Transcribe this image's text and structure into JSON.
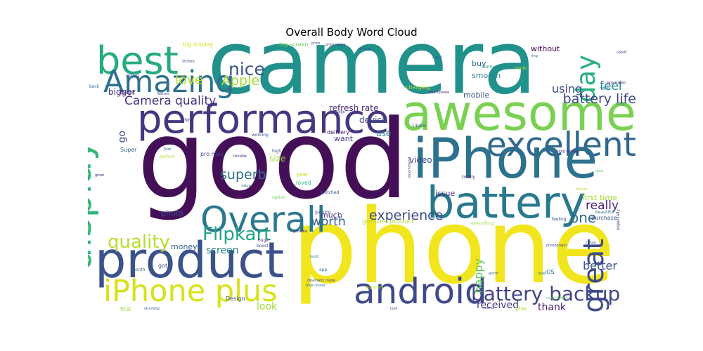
{
  "chart_data": {
    "type": "wordcloud",
    "title": "Overall Body Word Cloud",
    "colormap": "viridis",
    "background": "#ffffff",
    "words": [
      {
        "text": "good",
        "weight": 100,
        "color": "#440f57",
        "orientation": "horizontal"
      },
      {
        "text": "phone",
        "weight": 95,
        "color": "#f1e51d",
        "orientation": "horizontal"
      },
      {
        "text": "camera",
        "weight": 80,
        "color": "#21918c",
        "orientation": "horizontal"
      },
      {
        "text": "iPhone",
        "weight": 50,
        "color": "#2c718e",
        "orientation": "horizontal"
      },
      {
        "text": "awesome",
        "weight": 45,
        "color": "#7ad151",
        "orientation": "horizontal"
      },
      {
        "text": "product",
        "weight": 45,
        "color": "#3b528b",
        "orientation": "horizontal"
      },
      {
        "text": "battery",
        "weight": 40,
        "color": "#29798e",
        "orientation": "horizontal"
      },
      {
        "text": "performance",
        "weight": 36,
        "color": "#453781",
        "orientation": "horizontal"
      },
      {
        "text": "best",
        "weight": 35,
        "color": "#25ab82",
        "orientation": "horizontal"
      },
      {
        "text": "display",
        "weight": 34,
        "color": "#35b779",
        "orientation": "vertical"
      },
      {
        "text": "android",
        "weight": 32,
        "color": "#3e4a89",
        "orientation": "horizontal"
      },
      {
        "text": "Overall",
        "weight": 32,
        "color": "#2a788e",
        "orientation": "horizontal"
      },
      {
        "text": "excellent",
        "weight": 30,
        "color": "#31688e",
        "orientation": "horizontal"
      },
      {
        "text": "iPhone plus",
        "weight": 28,
        "color": "#d8e219",
        "orientation": "horizontal"
      },
      {
        "text": "Amazing",
        "weight": 28,
        "color": "#2d708e",
        "orientation": "horizontal"
      },
      {
        "text": "great",
        "weight": 26,
        "color": "#3e4c8a",
        "orientation": "vertical"
      },
      {
        "text": "day",
        "weight": 24,
        "color": "#29af7f",
        "orientation": "vertical"
      },
      {
        "text": "battery backup",
        "weight": 18,
        "color": "#414487",
        "orientation": "horizontal"
      },
      {
        "text": "quality",
        "weight": 17,
        "color": "#b5de2b",
        "orientation": "horizontal"
      },
      {
        "text": "Flipkart",
        "weight": 17,
        "color": "#20a486",
        "orientation": "horizontal"
      },
      {
        "text": "nice",
        "weight": 16,
        "color": "#3b528b",
        "orientation": "horizontal"
      },
      {
        "text": "Apple",
        "weight": 12,
        "color": "#a0da39",
        "orientation": "horizontal"
      },
      {
        "text": "love",
        "weight": 12,
        "color": "#b8de29",
        "orientation": "horizontal"
      },
      {
        "text": "battery life",
        "weight": 12,
        "color": "#3f4788",
        "orientation": "horizontal"
      },
      {
        "text": "Camera quality",
        "weight": 11,
        "color": "#453581",
        "orientation": "horizontal"
      },
      {
        "text": "experience",
        "weight": 12,
        "color": "#3e4989",
        "orientation": "horizontal"
      },
      {
        "text": "worth",
        "weight": 11,
        "color": "#355f8d",
        "orientation": "horizontal"
      },
      {
        "text": "superb",
        "weight": 12,
        "color": "#2c728e",
        "orientation": "horizontal"
      },
      {
        "text": "really",
        "weight": 11,
        "color": "#482475",
        "orientation": "horizontal"
      },
      {
        "text": "one",
        "weight": 13,
        "color": "#2f6c8e",
        "orientation": "horizontal"
      },
      {
        "text": "feel",
        "weight": 11,
        "color": "#21908d",
        "orientation": "horizontal"
      },
      {
        "text": "using",
        "weight": 10,
        "color": "#3c4f8a",
        "orientation": "horizontal"
      },
      {
        "text": "better",
        "weight": 10,
        "color": "#3b528b",
        "orientation": "horizontal"
      },
      {
        "text": "happy",
        "weight": 10,
        "color": "#5ec962",
        "orientation": "vertical"
      },
      {
        "text": "received",
        "weight": 9,
        "color": "#46327e",
        "orientation": "horizontal"
      },
      {
        "text": "thank",
        "weight": 9,
        "color": "#481f70",
        "orientation": "horizontal"
      },
      {
        "text": "look",
        "weight": 9,
        "color": "#9fda3a",
        "orientation": "horizontal"
      },
      {
        "text": "screen",
        "weight": 9,
        "color": "#26828e",
        "orientation": "horizontal"
      },
      {
        "text": "go",
        "weight": 9,
        "color": "#3e4a89",
        "orientation": "vertical"
      },
      {
        "text": "bigger",
        "weight": 8,
        "color": "#472d7b",
        "orientation": "horizontal"
      },
      {
        "text": "refresh rate",
        "weight": 8,
        "color": "#482878",
        "orientation": "horizontal"
      },
      {
        "text": "device",
        "weight": 8,
        "color": "#3e4c8a",
        "orientation": "horizontal"
      },
      {
        "text": "use",
        "weight": 8,
        "color": "#2a768e",
        "orientation": "horizontal"
      },
      {
        "text": "want",
        "weight": 7,
        "color": "#433e85",
        "orientation": "horizontal"
      },
      {
        "text": "video",
        "weight": 8,
        "color": "#3b528b",
        "orientation": "horizontal"
      },
      {
        "text": "size",
        "weight": 8,
        "color": "#a2da37",
        "orientation": "horizontal"
      },
      {
        "text": "mobile",
        "weight": 7,
        "color": "#3a548c",
        "orientation": "horizontal"
      },
      {
        "text": "buy",
        "weight": 7,
        "color": "#30698e",
        "orientation": "horizontal"
      },
      {
        "text": "smooth",
        "weight": 7,
        "color": "#26828e",
        "orientation": "horizontal"
      },
      {
        "text": "without",
        "weight": 7,
        "color": "#440154",
        "orientation": "horizontal"
      },
      {
        "text": "first time",
        "weight": 7,
        "color": "#a8db34",
        "orientation": "horizontal"
      },
      {
        "text": "photo",
        "weight": 7,
        "color": "#3b528b",
        "orientation": "horizontal"
      },
      {
        "text": "money",
        "weight": 7,
        "color": "#355f8d",
        "orientation": "horizontal"
      },
      {
        "text": "issue",
        "weight": 7,
        "color": "#472c7a",
        "orientation": "horizontal"
      },
      {
        "text": "much",
        "weight": 7,
        "color": "#46337f",
        "orientation": "horizontal"
      },
      {
        "text": "genuine product",
        "weight": 6,
        "color": "#b2dd2d",
        "orientation": "horizontal"
      },
      {
        "text": "purchase",
        "weight": 5,
        "color": "#3b528b",
        "orientation": "horizontal"
      },
      {
        "text": "big display",
        "weight": 5,
        "color": "#d0e11c",
        "orientation": "horizontal"
      },
      {
        "text": "big screen",
        "weight": 5,
        "color": "#6ccd5a",
        "orientation": "horizontal"
      },
      {
        "text": "pro max",
        "weight": 5,
        "color": "#404688",
        "orientation": "horizontal"
      },
      {
        "text": "Design",
        "weight": 5,
        "color": "#3b528b",
        "orientation": "horizontal"
      },
      {
        "text": "first",
        "weight": 5,
        "color": "#9dd93b",
        "orientation": "horizontal"
      },
      {
        "text": "iOS",
        "weight": 5,
        "color": "#2e6f8e",
        "orientation": "horizontal"
      },
      {
        "text": "plus",
        "weight": 5,
        "color": "#a5db36",
        "orientation": "horizontal"
      },
      {
        "text": "charging",
        "weight": 5,
        "color": "#bddf26",
        "orientation": "horizontal"
      },
      {
        "text": "delivery",
        "weight": 5,
        "color": "#482071",
        "orientation": "horizontal"
      },
      {
        "text": "loved",
        "weight": 5,
        "color": "#31b57b",
        "orientation": "horizontal"
      },
      {
        "text": "year",
        "weight": 5,
        "color": "#c5e021",
        "orientation": "horizontal"
      },
      {
        "text": "Super",
        "weight": 5,
        "color": "#31688e",
        "orientation": "horizontal"
      },
      {
        "text": "got",
        "weight": 5,
        "color": "#3b528b",
        "orientation": "horizontal"
      },
      {
        "text": "month",
        "weight": 4,
        "color": "#31688e",
        "orientation": "horizontal"
      },
      {
        "text": "thing",
        "weight": 4,
        "color": "#482475",
        "orientation": "horizontal"
      },
      {
        "text": "box",
        "weight": 4,
        "color": "#2c728e",
        "orientation": "horizontal"
      },
      {
        "text": "high",
        "weight": 4,
        "color": "#3e4c8a",
        "orientation": "horizontal"
      },
      {
        "text": "review",
        "weight": 4,
        "color": "#46327e",
        "orientation": "horizontal"
      },
      {
        "text": "totally",
        "weight": 4,
        "color": "#482475",
        "orientation": "horizontal"
      },
      {
        "text": "14plus",
        "weight": 4,
        "color": "#3b528b",
        "orientation": "horizontal"
      },
      {
        "text": "light",
        "weight": 4,
        "color": "#31688e",
        "orientation": "horizontal"
      },
      {
        "text": "normal",
        "weight": 4,
        "color": "#21908d",
        "orientation": "horizontal"
      },
      {
        "text": "mode",
        "weight": 4,
        "color": "#b8de29",
        "orientation": "horizontal"
      },
      {
        "text": "premium",
        "weight": 4,
        "color": "#482475",
        "orientation": "horizontal"
      },
      {
        "text": "used",
        "weight": 4,
        "color": "#3b528b",
        "orientation": "horizontal"
      },
      {
        "text": "beautiful",
        "weight": 4,
        "color": "#2c728e",
        "orientation": "horizontal"
      },
      {
        "text": "feeling",
        "weight": 4,
        "color": "#3e4c8a",
        "orientation": "horizontal"
      },
      {
        "text": "everything",
        "weight": 4,
        "color": "#9fda3a",
        "orientation": "horizontal"
      },
      {
        "text": "especially",
        "weight": 4,
        "color": "#46327e",
        "orientation": "vertical"
      },
      {
        "text": "huge",
        "weight": 4,
        "color": "#481f70",
        "orientation": "horizontal"
      },
      {
        "text": "boost",
        "weight": 4,
        "color": "#3b528b",
        "orientation": "horizontal"
      },
      {
        "text": "app",
        "weight": 4,
        "color": "#2c728e",
        "orientation": "horizontal"
      },
      {
        "text": "Switched",
        "weight": 4,
        "color": "#3e4c8a",
        "orientation": "horizontal"
      },
      {
        "text": "option",
        "weight": 4,
        "color": "#6ccd5a",
        "orientation": "horizontal"
      },
      {
        "text": "gaming",
        "weight": 4,
        "color": "#3b528b",
        "orientation": "horizontal"
      },
      {
        "text": "back",
        "weight": 4,
        "color": "#31688e",
        "orientation": "horizontal"
      },
      {
        "text": "bought",
        "weight": 4,
        "color": "#482475",
        "orientation": "horizontal"
      },
      {
        "text": "perfect",
        "weight": 4,
        "color": "#b8de29",
        "orientation": "horizontal"
      },
      {
        "text": "working",
        "weight": 4,
        "color": "#3b528b",
        "orientation": "horizontal"
      },
      {
        "text": "cinematic mode",
        "weight": 3,
        "color": "#46327e",
        "orientation": "horizontal"
      },
      {
        "text": "blue colour",
        "weight": 3,
        "color": "#2c728e",
        "orientation": "horizontal"
      },
      {
        "text": "much better",
        "weight": 3,
        "color": "#6ccd5a",
        "orientation": "horizontal"
      },
      {
        "text": "Shifted",
        "weight": 3,
        "color": "#3b528b",
        "orientation": "horizontal"
      },
      {
        "text": "product",
        "weight": 3,
        "color": "#3e4c8a",
        "orientation": "horizontal"
      },
      {
        "text": "feature",
        "weight": 3,
        "color": "#3b528b",
        "orientation": "horizontal"
      },
      {
        "text": "smartphone",
        "weight": 3,
        "color": "#482475",
        "orientation": "horizontal"
      },
      {
        "text": "build",
        "weight": 3,
        "color": "#2c728e",
        "orientation": "horizontal"
      },
      {
        "text": "sound",
        "weight": 3,
        "color": "#3b528b",
        "orientation": "horizontal"
      },
      {
        "text": "brightness",
        "weight": 3,
        "color": "#b8de29",
        "orientation": "horizontal"
      },
      {
        "text": "colour",
        "weight": 3,
        "color": "#3b528b",
        "orientation": "horizontal"
      },
      {
        "text": "value",
        "weight": 3,
        "color": "#2c728e",
        "orientation": "horizontal"
      },
      {
        "text": "recommend",
        "weight": 3,
        "color": "#46327e",
        "orientation": "vertical"
      },
      {
        "text": "genuine",
        "weight": 3,
        "color": "#482475",
        "orientation": "horizontal"
      },
      {
        "text": "photograph",
        "weight": 3,
        "color": "#3b528b",
        "orientation": "horizontal"
      },
      {
        "text": "ring",
        "weight": 3,
        "color": "#3b528b",
        "orientation": "horizontal"
      },
      {
        "text": "highly",
        "weight": 3,
        "color": "#2c728e",
        "orientation": "horizontal"
      },
      {
        "text": "stunning",
        "weight": 3,
        "color": "#3b528b",
        "orientation": "horizontal"
      },
      {
        "text": "long lasting",
        "weight": 3,
        "color": "#481f70",
        "orientation": "horizontal"
      },
      {
        "text": "dont",
        "weight": 3,
        "color": "#6ccd5a",
        "orientation": "horizontal"
      },
      {
        "text": "price",
        "weight": 3,
        "color": "#3b528b",
        "orientation": "horizontal"
      },
      {
        "text": "color",
        "weight": 3,
        "color": "#2c728e",
        "orientation": "horizontal"
      },
      {
        "text": "image",
        "weight": 3,
        "color": "#3b528b",
        "orientation": "horizontal"
      },
      {
        "text": "price range",
        "weight": 3,
        "color": "#46327e",
        "orientation": "horizontal"
      },
      {
        "text": "remove",
        "weight": 3,
        "color": "#3b528b",
        "orientation": "horizontal"
      },
      {
        "text": "great",
        "weight": 3,
        "color": "#482475",
        "orientation": "horizontal"
      },
      {
        "text": "new",
        "weight": 3,
        "color": "#2c728e",
        "orientation": "horizontal"
      },
      {
        "text": "worth",
        "weight": 3,
        "color": "#3b528b",
        "orientation": "horizontal"
      },
      {
        "text": "thanks",
        "weight": 3,
        "color": "#b8de29",
        "orientation": "horizontal"
      },
      {
        "text": "look",
        "weight": 3,
        "color": "#3b528b",
        "orientation": "horizontal"
      }
    ]
  }
}
